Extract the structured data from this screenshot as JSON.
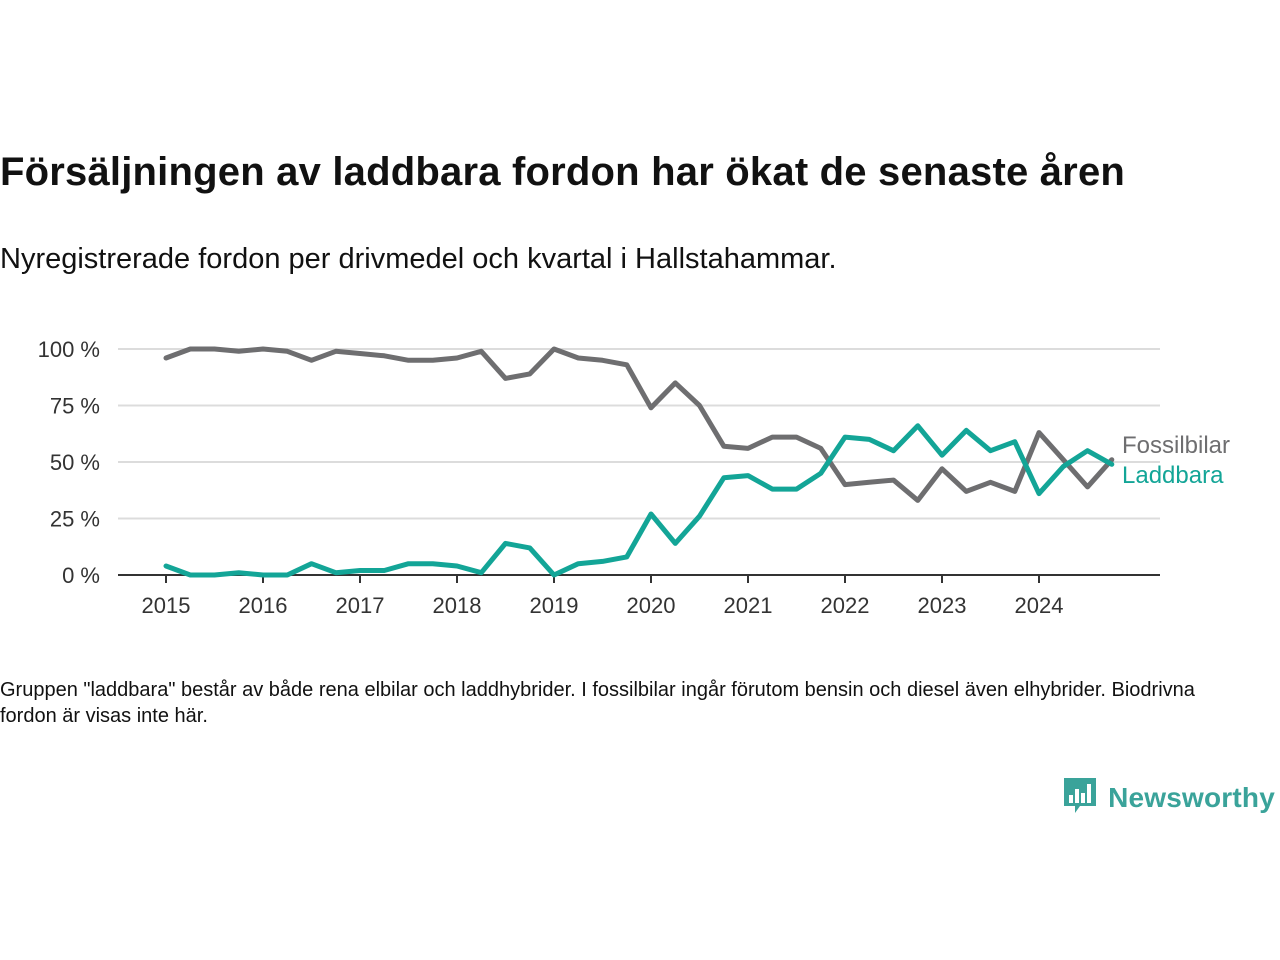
{
  "title": "Försäljningen av laddbara fordon har ökat de senaste åren",
  "subtitle": "Nyregistrerade fordon per drivmedel och kvartal i Hallstahammar.",
  "note": "Gruppen \"laddbara\" består av både rena elbilar och laddhybrider. I fossilbilar ingår förutom bensin och diesel även elhybrider. Biodrivna fordon är visas inte här.",
  "brand": {
    "name": "Newsworthy",
    "icon": "newsworthy-logo-icon"
  },
  "chart_data": {
    "type": "line",
    "x_tick_labels": [
      "2015",
      "2016",
      "2017",
      "2018",
      "2019",
      "2020",
      "2021",
      "2022",
      "2023",
      "2024"
    ],
    "y_tick_labels": [
      "0 %",
      "25 %",
      "50 %",
      "75 %",
      "100 %"
    ],
    "y_ticks": [
      0,
      25,
      50,
      75,
      100
    ],
    "ylim": [
      0,
      100
    ],
    "x": [
      "2015Q1",
      "2015Q2",
      "2015Q3",
      "2015Q4",
      "2016Q1",
      "2016Q2",
      "2016Q3",
      "2016Q4",
      "2017Q1",
      "2017Q2",
      "2017Q3",
      "2017Q4",
      "2018Q1",
      "2018Q2",
      "2018Q3",
      "2018Q4",
      "2019Q1",
      "2019Q2",
      "2019Q3",
      "2019Q4",
      "2020Q1",
      "2020Q2",
      "2020Q3",
      "2020Q4",
      "2021Q1",
      "2021Q2",
      "2021Q3",
      "2021Q4",
      "2022Q1",
      "2022Q2",
      "2022Q3",
      "2022Q4",
      "2023Q1",
      "2023Q2",
      "2023Q3",
      "2023Q4",
      "2024Q1",
      "2024Q2",
      "2024Q3",
      "2024Q4"
    ],
    "series": [
      {
        "name": "Fossilbilar",
        "color": "#6e6e70",
        "values": [
          96,
          100,
          100,
          99,
          100,
          99,
          95,
          99,
          98,
          97,
          95,
          95,
          96,
          99,
          87,
          89,
          100,
          96,
          95,
          93,
          74,
          85,
          75,
          57,
          56,
          61,
          61,
          56,
          40,
          41,
          42,
          33,
          47,
          37,
          41,
          37,
          63,
          51,
          39,
          51
        ]
      },
      {
        "name": "Laddbara",
        "color": "#13a597",
        "values": [
          4,
          0,
          0,
          1,
          0,
          0,
          5,
          1,
          2,
          2,
          5,
          5,
          4,
          1,
          14,
          12,
          0,
          5,
          6,
          8,
          27,
          14,
          26,
          43,
          44,
          38,
          38,
          45,
          61,
          60,
          55,
          66,
          53,
          64,
          55,
          59,
          36,
          48,
          55,
          49
        ]
      }
    ],
    "grid": true,
    "legend": "end-of-line labels"
  }
}
